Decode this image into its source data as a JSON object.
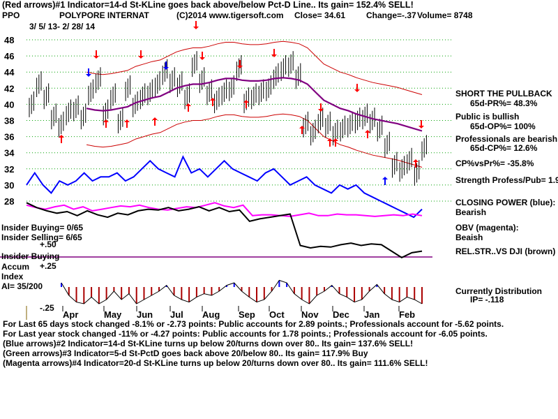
{
  "header": {
    "line1": "(Red arrows)#1 Indicator=14-d St-KLine goes back above/below Pct-D Line.. Its gain= 152.4% SELL!",
    "ticker": "PPO",
    "company": "POLYPORE INTERNAT",
    "copyright": "(C)2014 www.tigersoft.com",
    "close": "Close=  34.61",
    "change": "Change=-.37",
    "volume": "Volume=  8748",
    "date_range": "3/ 5/ 13- 2/ 28/ 14"
  },
  "left_labels": {
    "insider_buying_count": "Insider Buying= 0/65",
    "insider_selling_count": "Insider Selling= 6/65",
    "plus_50": "+.50",
    "insider_buying": "Insider Buying",
    "accum": "Accum",
    "plus_25": "+.25",
    "index": "Index",
    "ai": "AI= 35/200",
    "minus_25": "-.25"
  },
  "right_panel": {
    "short_pullback": "SHORT THE PULLBACK",
    "pr": "65d-PR%= 48.3%",
    "public_bullish": "Public is bullish",
    "op": "65d-OP%= 100%",
    "prof_bearish": "Professionals are bearish",
    "cp": "65d-CP%= 12.6%",
    "cp_vs_pr": "CP%vsPr%= -35.8%",
    "strength": "Strength Profess/Pub= 1.9",
    "closing_power_title": "CLOSING POWER (blue):",
    "closing_power_val": "Bearish",
    "obv_title": "OBV (magenta):",
    "obv_val": "Beaish",
    "relstr": "REL.STR..VS DJI (brown)",
    "distribution": "Currently Distribution",
    "ip": "IP= -.118"
  },
  "footer": {
    "line1": "For Last 65 days stock changed -8.1% or -2.73 points:  Public accounts for  2.89 points.;  Professionals account for -5.62 points.",
    "line2": "For Last year stock changed -11% or -4.27 points:  Public accounts for  1.78 points.;  Professionals account for -6.05 points.",
    "line3": "(Blue arrows)#2 Indicator=14-d St-KLine turns up below 20/turns down over 80.. Its gain= 137.6% SELL!",
    "line4": "(Green arrows)#3 Indicator=5-d St-PctD goes back above 20/below 80.. Its gain= 117.9% Buy",
    "line5": "(Magenta arrows)#4 Indicator=20-d St-KLine turns up below 20/turns down over 80.. Its gain= 111.6% SELL!"
  },
  "colors": {
    "price": "#000000",
    "closing_power": "#0000ff",
    "obv": "#ff00ff",
    "rel_str": "#000000",
    "band": "#cc0000",
    "ma": "#800080",
    "grid": "#00a000",
    "ai_pos": "#0000ff",
    "ai_neg": "#aa0000",
    "insider_line": "#800080",
    "sell_arrow": "#ff0000",
    "buy_arrow": "#ff0000",
    "blue_arrow": "#0000ff"
  },
  "chart_data": {
    "type": "line",
    "title": "POLYPORE INTERNAT",
    "x_tick_labels": [
      "Apr",
      "May",
      "Jun",
      "Jul",
      "Aug",
      "Sep",
      "Oct",
      "Nov",
      "Dec",
      "Jan",
      "Feb"
    ],
    "y_tick_labels": [
      "48",
      "46",
      "44",
      "42",
      "40",
      "38",
      "36",
      "34",
      "32",
      "30",
      "28"
    ],
    "ylim": [
      26,
      49
    ],
    "ai_ticks": [
      "+.50",
      "+.25",
      "-.25"
    ],
    "grid": true,
    "price_close": [
      40,
      42.5,
      41,
      38.5,
      37.5,
      39,
      39.5,
      38.5,
      41.5,
      43,
      39,
      41,
      38,
      42,
      40,
      41,
      41.5,
      42.5,
      44,
      43,
      42.5,
      41,
      45,
      43,
      41.5,
      40.5,
      41.5,
      42,
      44.5,
      40.5,
      41,
      41.5,
      42,
      43.5,
      44.5,
      45,
      43.5,
      37.5,
      36.5,
      38,
      37.5,
      36.5,
      37,
      37.5,
      38,
      38.5,
      38,
      37,
      35,
      32.5,
      32,
      33,
      31.5,
      34.6
    ],
    "ma_50": [
      null,
      null,
      null,
      null,
      null,
      null,
      null,
      39.5,
      39.3,
      39.2,
      39.3,
      39.5,
      39.7,
      40.2,
      40.5,
      40.8,
      41,
      41.5,
      42,
      42.3,
      42.5,
      42.5,
      42.7,
      43,
      43.2,
      43.2,
      43,
      42.9,
      42.9,
      43,
      43.2,
      43.3,
      43.2,
      43,
      42.5,
      41.5,
      40.5,
      40,
      39.5,
      39.2,
      38.8,
      38.5,
      38.2,
      38,
      37.8,
      37.6,
      37.3,
      37,
      36.7
    ],
    "closing_power": [
      30,
      31.5,
      30,
      29,
      30.5,
      30,
      30.5,
      31.5,
      30.5,
      31,
      31,
      31.5,
      30.5,
      31,
      32,
      33,
      32,
      31.5,
      31,
      33.5,
      31.5,
      32,
      31,
      32,
      33,
      32,
      31.5,
      31,
      30.5,
      31.5,
      32,
      31,
      30,
      30.5,
      31,
      30,
      29.5,
      29,
      30,
      29.5,
      30,
      29,
      28.5,
      28,
      27.5,
      27,
      26.5,
      26,
      27
    ],
    "obv": [
      27.5,
      27.2,
      27,
      27.3,
      27.5,
      27,
      27.3,
      26.8,
      27,
      27.2,
      27.4,
      27.3,
      27.5,
      27.2,
      27,
      26.9,
      27.1,
      27.3,
      27.2,
      27.5,
      27.8,
      27.4,
      27.2,
      27.5,
      26.2,
      26.3,
      26.3,
      26.2,
      26.1,
      26.3,
      26.5,
      26.2,
      26.2,
      26.4,
      26.3,
      26.3,
      26.2,
      26.1,
      26.2,
      26.3,
      26.2,
      26.4,
      26.2
    ],
    "rel_str": [
      27.8,
      27.2,
      26.8,
      26.5,
      26.7,
      26.2,
      26.8,
      26.3,
      26,
      26.5,
      26.3,
      26.8,
      27,
      26.9,
      27.2,
      26.8,
      27,
      27.3,
      26.8,
      27.2,
      26.7,
      26.9,
      25.5,
      25.8,
      26,
      26.2,
      26.4,
      22.5,
      22.2,
      22.4,
      22.3,
      22.6,
      22.8,
      22.5,
      22.7,
      22.6,
      21.8,
      21,
      21.6,
      21.8
    ],
    "ai_index": [
      0.05,
      -0.1,
      -0.18,
      -0.2,
      -0.12,
      -0.2,
      -0.15,
      -0.05,
      -0.15,
      -0.08,
      -0.2,
      -0.15,
      -0.1,
      -0.05,
      0.02,
      -0.1,
      -0.15,
      -0.18,
      -0.12,
      -0.08,
      -0.1,
      -0.05,
      0.02,
      0.05,
      -0.05,
      -0.12,
      -0.18,
      -0.15,
      -0.05,
      0.08,
      0.05,
      -0.08,
      -0.15,
      -0.2,
      -0.1,
      -0.05,
      0.02,
      -0.08,
      -0.12,
      -0.18,
      -0.15,
      -0.05,
      0.03,
      -0.08,
      -0.15,
      -0.18,
      -0.12,
      -0.15,
      -0.2
    ]
  }
}
